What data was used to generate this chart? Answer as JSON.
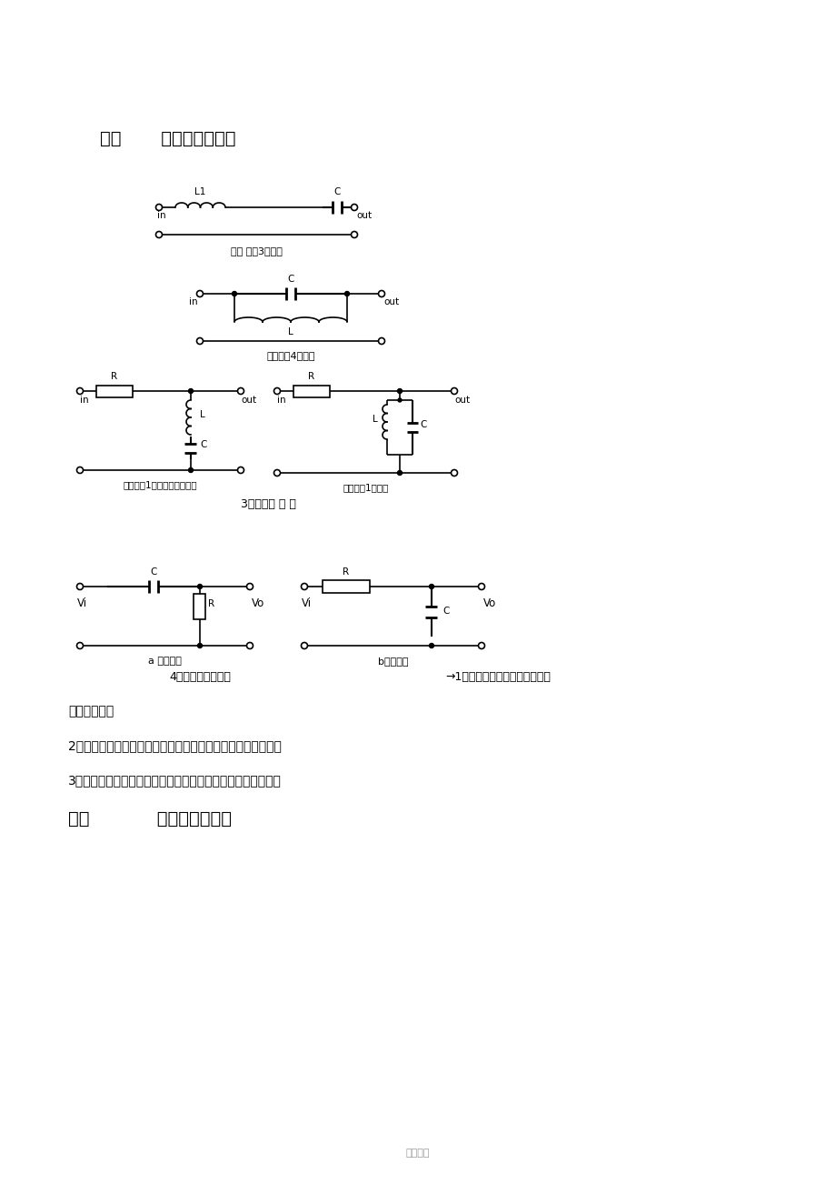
{
  "bg_color": "#ffffff",
  "title1": "一、       微分和积分电路",
  "title2": "二、           共射极放大电路",
  "caption3": "3、信号滤 波 器",
  "caption4": "4、微分和积分电路",
  "sub_caption_filter3_bandpass": "信号 滤波3一带通",
  "sub_caption_filter4_bandstop": "信号滤波4一带阻",
  "sub_caption_filter1_bandstop2": "信号滤波1一带阻（陷波器）",
  "sub_caption_filter1_bandpass": "信号滤波1一带通",
  "sub_caption_a": "a 微分电路",
  "sub_caption_b": "b积分电路",
  "text_note1": "→1、电路的作用，与滤波器的区",
  "text_note1b": "别和相同点。",
  "text_note2": "2、微分和积分电路电压变化过程分析，画出电压变化波形图。",
  "text_note3": "3、计算：时间常数，电压变化方程，电阻和电容参数的选择。",
  "footer": "推荐精选"
}
